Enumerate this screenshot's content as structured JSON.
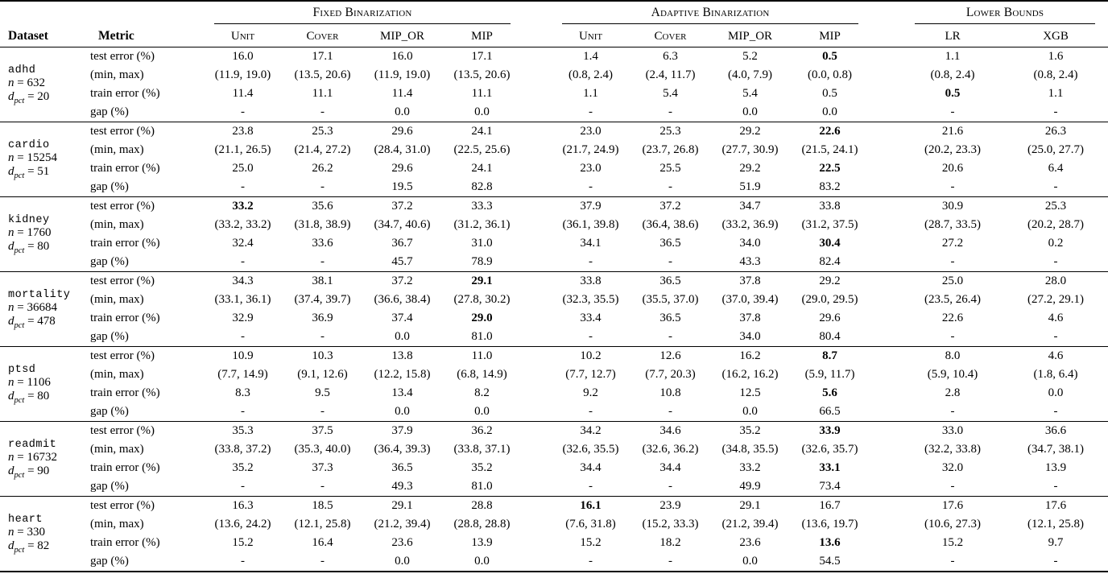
{
  "header": {
    "dataset": "Dataset",
    "metric": "Metric",
    "groups": [
      {
        "label": "Fixed Binarization",
        "columns": [
          "Unit",
          "Cover",
          "MIP_OR",
          "MIP"
        ]
      },
      {
        "label": "Adaptive Binarization",
        "columns": [
          "Unit",
          "Cover",
          "MIP_OR",
          "MIP"
        ]
      },
      {
        "label": "Lower Bounds",
        "columns": [
          "LR",
          "XGB"
        ]
      }
    ]
  },
  "metrics": [
    "test error (%)",
    "(min, max)",
    "train error (%)",
    "gap (%)"
  ],
  "datasets": [
    {
      "name": "adhd",
      "n": "632",
      "d_pct": "20",
      "rows": [
        [
          "16.0",
          "17.1",
          "16.0",
          "17.1",
          "1.4",
          "6.3",
          "5.2",
          "0.5",
          "1.1",
          "1.6"
        ],
        [
          "(11.9, 19.0)",
          "(13.5, 20.6)",
          "(11.9, 19.0)",
          "(13.5, 20.6)",
          "(0.8, 2.4)",
          "(2.4, 11.7)",
          "(4.0, 7.9)",
          "(0.0, 0.8)",
          "(0.8, 2.4)",
          "(0.8, 2.4)"
        ],
        [
          "11.4",
          "11.1",
          "11.4",
          "11.1",
          "1.1",
          "5.4",
          "5.4",
          "0.5",
          "0.5",
          "1.1"
        ],
        [
          "-",
          "-",
          "0.0",
          "0.0",
          "-",
          "-",
          "0.0",
          "0.0",
          "-",
          "-"
        ]
      ],
      "bold": [
        [
          0,
          7
        ],
        [
          2,
          8
        ]
      ]
    },
    {
      "name": "cardio",
      "n": "15254",
      "d_pct": "51",
      "rows": [
        [
          "23.8",
          "25.3",
          "29.6",
          "24.1",
          "23.0",
          "25.3",
          "29.2",
          "22.6",
          "21.6",
          "26.3"
        ],
        [
          "(21.1, 26.5)",
          "(21.4, 27.2)",
          "(28.4, 31.0)",
          "(22.5, 25.6)",
          "(21.7, 24.9)",
          "(23.7, 26.8)",
          "(27.7, 30.9)",
          "(21.5, 24.1)",
          "(20.2, 23.3)",
          "(25.0, 27.7)"
        ],
        [
          "25.0",
          "26.2",
          "29.6",
          "24.1",
          "23.0",
          "25.5",
          "29.2",
          "22.5",
          "20.6",
          "6.4"
        ],
        [
          "-",
          "-",
          "19.5",
          "82.8",
          "-",
          "-",
          "51.9",
          "83.2",
          "-",
          "-"
        ]
      ],
      "bold": [
        [
          0,
          7
        ],
        [
          2,
          7
        ]
      ]
    },
    {
      "name": "kidney",
      "n": "1760",
      "d_pct": "80",
      "rows": [
        [
          "33.2",
          "35.6",
          "37.2",
          "33.3",
          "37.9",
          "37.2",
          "34.7",
          "33.8",
          "30.9",
          "25.3"
        ],
        [
          "(33.2, 33.2)",
          "(31.8, 38.9)",
          "(34.7, 40.6)",
          "(31.2, 36.1)",
          "(36.1, 39.8)",
          "(36.4, 38.6)",
          "(33.2, 36.9)",
          "(31.2, 37.5)",
          "(28.7, 33.5)",
          "(20.2, 28.7)"
        ],
        [
          "32.4",
          "33.6",
          "36.7",
          "31.0",
          "34.1",
          "36.5",
          "34.0",
          "30.4",
          "27.2",
          "0.2"
        ],
        [
          "-",
          "-",
          "45.7",
          "78.9",
          "-",
          "-",
          "43.3",
          "82.4",
          "-",
          "-"
        ]
      ],
      "bold": [
        [
          0,
          0
        ],
        [
          2,
          7
        ]
      ]
    },
    {
      "name": "mortality",
      "n": "36684",
      "d_pct": "478",
      "rows": [
        [
          "34.3",
          "38.1",
          "37.2",
          "29.1",
          "33.8",
          "36.5",
          "37.8",
          "29.2",
          "25.0",
          "28.0"
        ],
        [
          "(33.1, 36.1)",
          "(37.4, 39.7)",
          "(36.6, 38.4)",
          "(27.8, 30.2)",
          "(32.3, 35.5)",
          "(35.5, 37.0)",
          "(37.0, 39.4)",
          "(29.0, 29.5)",
          "(23.5, 26.4)",
          "(27.2, 29.1)"
        ],
        [
          "32.9",
          "36.9",
          "37.4",
          "29.0",
          "33.4",
          "36.5",
          "37.8",
          "29.6",
          "22.6",
          "4.6"
        ],
        [
          "-",
          "-",
          "0.0",
          "81.0",
          "-",
          "-",
          "34.0",
          "80.4",
          "-",
          "-"
        ]
      ],
      "bold": [
        [
          0,
          3
        ],
        [
          2,
          3
        ]
      ]
    },
    {
      "name": "ptsd",
      "n": "1106",
      "d_pct": "80",
      "rows": [
        [
          "10.9",
          "10.3",
          "13.8",
          "11.0",
          "10.2",
          "12.6",
          "16.2",
          "8.7",
          "8.0",
          "4.6"
        ],
        [
          "(7.7, 14.9)",
          "(9.1, 12.6)",
          "(12.2, 15.8)",
          "(6.8, 14.9)",
          "(7.7, 12.7)",
          "(7.7, 20.3)",
          "(16.2, 16.2)",
          "(5.9, 11.7)",
          "(5.9, 10.4)",
          "(1.8, 6.4)"
        ],
        [
          "8.3",
          "9.5",
          "13.4",
          "8.2",
          "9.2",
          "10.8",
          "12.5",
          "5.6",
          "2.8",
          "0.0"
        ],
        [
          "-",
          "-",
          "0.0",
          "0.0",
          "-",
          "-",
          "0.0",
          "66.5",
          "-",
          "-"
        ]
      ],
      "bold": [
        [
          0,
          7
        ],
        [
          2,
          7
        ]
      ]
    },
    {
      "name": "readmit",
      "n": "16732",
      "d_pct": "90",
      "rows": [
        [
          "35.3",
          "37.5",
          "37.9",
          "36.2",
          "34.2",
          "34.6",
          "35.2",
          "33.9",
          "33.0",
          "36.6"
        ],
        [
          "(33.8, 37.2)",
          "(35.3, 40.0)",
          "(36.4, 39.3)",
          "(33.8, 37.1)",
          "(32.6, 35.5)",
          "(32.6, 36.2)",
          "(34.8, 35.5)",
          "(32.6, 35.7)",
          "(32.2, 33.8)",
          "(34.7, 38.1)"
        ],
        [
          "35.2",
          "37.3",
          "36.5",
          "35.2",
          "34.4",
          "34.4",
          "33.2",
          "33.1",
          "32.0",
          "13.9"
        ],
        [
          "-",
          "-",
          "49.3",
          "81.0",
          "-",
          "-",
          "49.9",
          "73.4",
          "-",
          "-"
        ]
      ],
      "bold": [
        [
          0,
          7
        ],
        [
          2,
          7
        ]
      ]
    },
    {
      "name": "heart",
      "n": "330",
      "d_pct": "82",
      "rows": [
        [
          "16.3",
          "18.5",
          "29.1",
          "28.8",
          "16.1",
          "23.9",
          "29.1",
          "16.7",
          "17.6",
          "17.6"
        ],
        [
          "(13.6, 24.2)",
          "(12.1, 25.8)",
          "(21.2, 39.4)",
          "(28.8, 28.8)",
          "(7.6, 31.8)",
          "(15.2, 33.3)",
          "(21.2, 39.4)",
          "(13.6, 19.7)",
          "(10.6, 27.3)",
          "(12.1, 25.8)"
        ],
        [
          "15.2",
          "16.4",
          "23.6",
          "13.9",
          "15.2",
          "18.2",
          "23.6",
          "13.6",
          "15.2",
          "9.7"
        ],
        [
          "-",
          "-",
          "0.0",
          "0.0",
          "-",
          "-",
          "0.0",
          "54.5",
          "-",
          "-"
        ]
      ],
      "bold": [
        [
          0,
          4
        ],
        [
          2,
          7
        ]
      ]
    }
  ]
}
